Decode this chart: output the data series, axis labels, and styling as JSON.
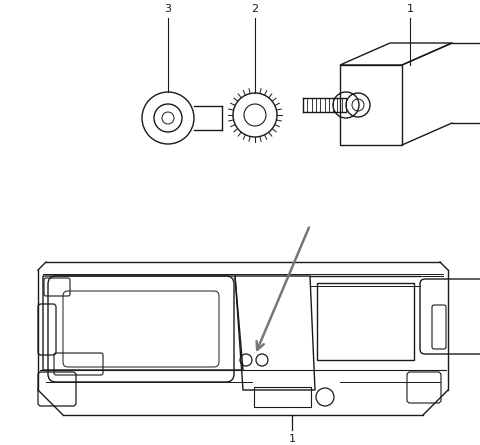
{
  "bg_color": "#ffffff",
  "line_color": "#1a1a1a",
  "gray_line": "#777777",
  "label_color": "#111111",
  "figsize": [
    4.8,
    4.45
  ],
  "dpi": 100
}
